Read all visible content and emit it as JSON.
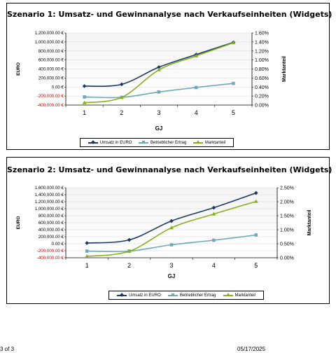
{
  "charts": [
    {
      "title": "Szenario 1: Umsatz- und Gewinnanalyse nach Verkaufseinheiten (Widgets)",
      "legend": {
        "revenue": "Umsatz in EURO",
        "profit": "Betrieblicher Ertrag",
        "share": "Marktanteil"
      }
    },
    {
      "title": "Szenario 2: Umsatz- und Gewinnanalyse nach Verkaufseinheiten (Widgets)",
      "legend": {
        "revenue": "Umsatz in EURO",
        "profit": "Betrieblicher Ertrag",
        "share": "Marktanteil"
      }
    }
  ],
  "footer": {
    "page": "3 of 3",
    "date": "05/17/2025"
  },
  "colors": {
    "revenue": "#1F3864",
    "profit": "#6FA8B8",
    "share": "#8AAE1C",
    "negative_tick": "#C00000",
    "grid": "#D8D8D8",
    "plot_bg_top": "#F4F4F4",
    "plot_bg_bottom": "#FFFFFF"
  },
  "chart_data": [
    {
      "type": "line",
      "title": "Szenario 1: Umsatz- und Gewinnanalyse nach Verkaufseinheiten (Widgets)",
      "xlabel": "GJ",
      "ylabel": "EURO",
      "y2label": "Marktanteil",
      "categories": [
        "1",
        "2",
        "3",
        "4",
        "5"
      ],
      "ylim": [
        -400000,
        1200000
      ],
      "y_ticks": [
        "-400,000.00 €",
        "-200,000.00 €",
        "0.00 €",
        "200,000.00 €",
        "400,000.00 €",
        "600,000.00 €",
        "800,000.00 €",
        "1,000,000.00 €",
        "1,200,000.00 €"
      ],
      "y2lim": [
        0,
        0.016
      ],
      "y2_ticks": [
        "0.00%",
        "0.20%",
        "0.40%",
        "0.60%",
        "0.80%",
        "1.00%",
        "1.20%",
        "1.40%",
        "1.60%"
      ],
      "grid": true,
      "legend_position": "bottom",
      "series": [
        {
          "name": "Umsatz in EURO",
          "axis": "left",
          "marker": "diamond",
          "values": [
            20000,
            60000,
            440000,
            720000,
            990000
          ]
        },
        {
          "name": "Betrieblicher Ertrag",
          "axis": "left",
          "marker": "square",
          "values": [
            -220000,
            -230000,
            -110000,
            -10000,
            80000
          ]
        },
        {
          "name": "Marktanteil",
          "axis": "right",
          "marker": "triangle",
          "values": [
            0.0005,
            0.0017,
            0.0078,
            0.0109,
            0.0138
          ]
        }
      ]
    },
    {
      "type": "line",
      "title": "Szenario 2: Umsatz- und Gewinnanalyse nach Verkaufseinheiten (Widgets)",
      "xlabel": "GJ",
      "ylabel": "EURO",
      "y2label": "Marktanteil",
      "categories": [
        "1",
        "2",
        "3",
        "4",
        "5"
      ],
      "ylim": [
        -400000,
        1600000
      ],
      "y_ticks": [
        "-400,000.00 €",
        "-200,000.00 €",
        "0.00 €",
        "200,000.00 €",
        "400,000.00 €",
        "600,000.00 €",
        "800,000.00 €",
        "1,000,000.00 €",
        "1,200,000.00 €",
        "1,400,000.00 €",
        "1,600,000.00 €"
      ],
      "y2lim": [
        0,
        0.025
      ],
      "y2_ticks": [
        "0.00%",
        "0.50%",
        "1.00%",
        "1.50%",
        "2.00%",
        "2.50%"
      ],
      "grid": true,
      "legend_position": "bottom",
      "series": [
        {
          "name": "Umsatz in EURO",
          "axis": "left",
          "marker": "diamond",
          "values": [
            20000,
            110000,
            650000,
            1030000,
            1450000
          ]
        },
        {
          "name": "Betrieblicher Ertrag",
          "axis": "left",
          "marker": "square",
          "values": [
            -210000,
            -210000,
            -30000,
            100000,
            250000
          ]
        },
        {
          "name": "Marktanteil",
          "axis": "right",
          "marker": "triangle",
          "values": [
            0.0005,
            0.0023,
            0.0107,
            0.0156,
            0.0201
          ]
        }
      ]
    }
  ]
}
